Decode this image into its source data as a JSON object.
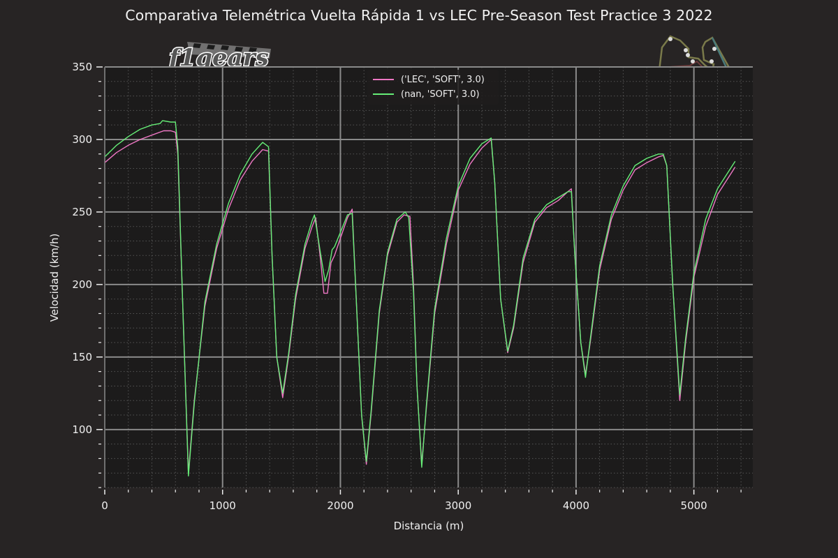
{
  "title": "Comparativa Telemétrica Vuelta Rápida 1  vs LEC Pre-Season Test Practice 3 2022",
  "logos": {
    "brand": "f1gears",
    "track_map": "bahrain-circuit-map"
  },
  "colors": {
    "background": "#272424",
    "plot_background": "#1c1b1b",
    "series_lec": "#ee77c4",
    "series_nan": "#66ee77",
    "grid_major": "#8a8a8a",
    "grid_minor": "#555555",
    "text": "#f0f0f0"
  },
  "legend": {
    "items": [
      {
        "label": "('LEC', 'SOFT', 3.0)",
        "color": "#ee77c4"
      },
      {
        "label": "(nan, 'SOFT', 3.0)",
        "color": "#66ee77"
      }
    ]
  },
  "chart_data": {
    "type": "line",
    "title": "Comparativa Telemétrica Vuelta Rápida 1  vs LEC Pre-Season Test Practice 3 2022",
    "xlabel": "Distancia (m)",
    "ylabel": "Velocidad (km/h)",
    "xlim": [
      0,
      5500
    ],
    "ylim": [
      60,
      350
    ],
    "xticks": [
      0,
      1000,
      2000,
      3000,
      4000,
      5000
    ],
    "yticks": [
      100,
      150,
      200,
      250,
      300,
      350
    ],
    "x_minor_step": 200,
    "y_minor_step": 10,
    "grid": true,
    "legend_position": "upper center",
    "series": [
      {
        "name": "('LEC', 'SOFT', 3.0)",
        "color": "#ee77c4",
        "x": [
          0,
          100,
          200,
          300,
          400,
          500,
          560,
          600,
          620,
          660,
          710,
          760,
          850,
          950,
          1050,
          1150,
          1250,
          1340,
          1390,
          1420,
          1460,
          1510,
          1560,
          1620,
          1700,
          1760,
          1790,
          1830,
          1860,
          1890,
          1920,
          1950,
          2000,
          2060,
          2100,
          2140,
          2180,
          2220,
          2260,
          2330,
          2400,
          2480,
          2540,
          2590,
          2620,
          2650,
          2690,
          2730,
          2800,
          2900,
          3000,
          3100,
          3200,
          3280,
          3310,
          3360,
          3420,
          3470,
          3550,
          3650,
          3750,
          3850,
          3930,
          3960,
          3990,
          4040,
          4080,
          4120,
          4200,
          4300,
          4400,
          4500,
          4600,
          4700,
          4740,
          4770,
          4820,
          4880,
          4930,
          5000,
          5100,
          5200,
          5350
        ],
        "values": [
          284,
          291,
          296,
          300,
          303,
          306,
          306,
          305,
          290,
          190,
          70,
          120,
          185,
          225,
          252,
          272,
          285,
          293,
          292,
          220,
          150,
          122,
          150,
          190,
          225,
          240,
          246,
          218,
          194,
          194,
          215,
          220,
          232,
          246,
          252,
          180,
          110,
          76,
          110,
          180,
          220,
          243,
          248,
          247,
          200,
          130,
          76,
          115,
          180,
          228,
          265,
          283,
          294,
          300,
          270,
          190,
          153,
          170,
          215,
          243,
          253,
          258,
          264,
          266,
          220,
          160,
          138,
          160,
          210,
          245,
          265,
          279,
          284,
          288,
          289,
          282,
          200,
          120,
          160,
          205,
          240,
          262,
          281
        ]
      },
      {
        "name": "(nan, 'SOFT', 3.0)",
        "color": "#66ee77",
        "x": [
          0,
          100,
          200,
          300,
          400,
          470,
          490,
          560,
          600,
          620,
          660,
          710,
          760,
          850,
          950,
          1050,
          1150,
          1250,
          1340,
          1390,
          1420,
          1460,
          1510,
          1560,
          1620,
          1700,
          1760,
          1780,
          1830,
          1870,
          1900,
          1930,
          1950,
          2000,
          2060,
          2100,
          2140,
          2180,
          2220,
          2260,
          2330,
          2400,
          2480,
          2550,
          2580,
          2620,
          2650,
          2690,
          2730,
          2800,
          2900,
          3000,
          3100,
          3200,
          3280,
          3310,
          3360,
          3420,
          3470,
          3550,
          3650,
          3750,
          3850,
          3930,
          3960,
          3990,
          4040,
          4080,
          4120,
          4200,
          4300,
          4400,
          4500,
          4600,
          4700,
          4740,
          4770,
          4820,
          4880,
          4930,
          5000,
          5100,
          5200,
          5350
        ],
        "values": [
          288,
          296,
          302,
          307,
          310,
          311,
          313,
          312,
          312,
          295,
          190,
          68,
          118,
          188,
          228,
          256,
          276,
          290,
          298,
          295,
          220,
          150,
          125,
          152,
          193,
          228,
          244,
          248,
          222,
          202,
          210,
          224,
          226,
          236,
          248,
          249,
          180,
          110,
          78,
          112,
          182,
          222,
          245,
          250,
          246,
          195,
          130,
          74,
          117,
          183,
          232,
          268,
          287,
          297,
          301,
          270,
          190,
          154,
          172,
          218,
          245,
          255,
          260,
          264,
          264,
          220,
          160,
          136,
          162,
          213,
          248,
          268,
          282,
          287,
          290,
          290,
          282,
          200,
          124,
          163,
          208,
          245,
          266,
          285
        ]
      }
    ]
  },
  "axes": {
    "xlabel": "Distancia (m)",
    "ylabel": "Velocidad (km/h)",
    "xtick_labels": [
      "0",
      "1000",
      "2000",
      "3000",
      "4000",
      "5000"
    ],
    "ytick_labels": [
      "100",
      "150",
      "200",
      "250",
      "300",
      "350"
    ]
  }
}
